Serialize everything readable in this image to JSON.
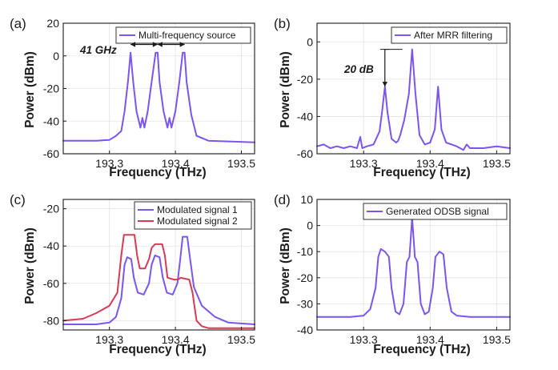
{
  "figure": {
    "panels": [
      {
        "label": "(a)",
        "ylabel": "Power (dBm)",
        "xlabel": "Frequency (THz)",
        "xlim": [
          193.23,
          193.52
        ],
        "ylim": [
          -60,
          20
        ],
        "xticks": [
          193.3,
          193.4,
          193.5
        ],
        "yticks": [
          -60,
          -40,
          -20,
          0,
          20
        ],
        "legend": [
          "Multi-frequency source"
        ],
        "annotation": "41 GHz"
      },
      {
        "label": "(b)",
        "ylabel": "Power (dBm)",
        "xlabel": "Frequency (THz)",
        "xlim": [
          193.23,
          193.52
        ],
        "ylim": [
          -60,
          10
        ],
        "xticks": [
          193.3,
          193.4,
          193.5
        ],
        "yticks": [
          -60,
          -40,
          -20,
          0
        ],
        "legend": [
          "After MRR filtering"
        ],
        "annotation": "20 dB"
      },
      {
        "label": "(c)",
        "ylabel": "Power (dBm)",
        "xlabel": "Frequency (THz)",
        "xlim": [
          193.23,
          193.52
        ],
        "ylim": [
          -85,
          -15
        ],
        "xticks": [
          193.3,
          193.4,
          193.5
        ],
        "yticks": [
          -80,
          -60,
          -40,
          -20
        ],
        "legend": [
          "Modulated signal 1",
          "Modulated signal 2"
        ]
      },
      {
        "label": "(d)",
        "ylabel": "Power (dBm)",
        "xlabel": "Frequency (THz)",
        "xlim": [
          193.23,
          193.52
        ],
        "ylim": [
          -40,
          10
        ],
        "xticks": [
          193.3,
          193.4,
          193.5
        ],
        "yticks": [
          -40,
          -30,
          -20,
          -10,
          0,
          10
        ],
        "legend": [
          "Generated ODSB signal"
        ]
      }
    ]
  },
  "colors": {
    "purple": "#7a55ee",
    "red": "#d63a55",
    "axis": "#1a1a1a"
  },
  "chart_data": [
    {
      "type": "line",
      "title": "(a)",
      "xlabel": "Frequency (THz)",
      "ylabel": "Power (dBm)",
      "xlim": [
        193.23,
        193.52
      ],
      "ylim": [
        -60,
        20
      ],
      "series": [
        {
          "name": "Multi-frequency source",
          "color": "#7a55ee",
          "x": [
            193.23,
            193.28,
            193.3,
            193.31,
            193.318,
            193.323,
            193.328,
            193.332,
            193.336,
            193.341,
            193.347,
            193.35,
            193.353,
            193.358,
            193.364,
            193.37,
            193.373,
            193.376,
            193.382,
            193.388,
            193.391,
            193.394,
            193.4,
            193.406,
            193.411,
            193.414,
            193.417,
            193.424,
            193.432,
            193.45,
            193.52
          ],
          "y": [
            -52,
            -52,
            -51.5,
            -49,
            -46,
            -34,
            -16,
            2,
            -16,
            -34,
            -44,
            -38,
            -44,
            -34,
            -16,
            2,
            2,
            -16,
            -34,
            -44,
            -38,
            -44,
            -34,
            -16,
            2,
            2,
            -16,
            -36,
            -49,
            -52,
            -53
          ]
        }
      ],
      "annotations": [
        {
          "text": "41 GHz",
          "x": 193.28,
          "y": 7
        },
        {
          "type": "arrow",
          "from": [
            193.332,
            7
          ],
          "to": [
            193.373,
            7
          ]
        },
        {
          "type": "arrow",
          "from": [
            193.373,
            7
          ],
          "to": [
            193.414,
            7
          ]
        }
      ]
    },
    {
      "type": "line",
      "title": "(b)",
      "xlabel": "Frequency (THz)",
      "ylabel": "Power (dBm)",
      "xlim": [
        193.23,
        193.52
      ],
      "ylim": [
        -60,
        10
      ],
      "series": [
        {
          "name": "After MRR filtering",
          "color": "#7a55ee",
          "x": [
            193.23,
            193.24,
            193.25,
            193.26,
            193.27,
            193.28,
            193.29,
            193.295,
            193.298,
            193.305,
            193.315,
            193.324,
            193.328,
            193.332,
            193.336,
            193.342,
            193.349,
            193.352,
            193.355,
            193.361,
            193.368,
            193.373,
            193.378,
            193.384,
            193.392,
            193.4,
            193.407,
            193.412,
            193.417,
            193.424,
            193.44,
            193.45,
            193.455,
            193.46,
            193.48,
            193.5,
            193.52
          ],
          "y": [
            -56,
            -55,
            -57,
            -56,
            -57,
            -56,
            -57,
            -51,
            -57,
            -56,
            -55,
            -48,
            -37,
            -24,
            -38,
            -52,
            -54,
            -53,
            -50,
            -42,
            -28,
            -4,
            -28,
            -50,
            -55,
            -54,
            -47,
            -24,
            -47,
            -54,
            -56,
            -58,
            -55,
            -57,
            -57,
            -56,
            -57
          ]
        }
      ],
      "annotations": [
        {
          "text": "20 dB",
          "x": 193.275,
          "y": -13
        },
        {
          "type": "arrow",
          "from": [
            193.332,
            -4
          ],
          "to": [
            193.332,
            -24
          ]
        }
      ]
    },
    {
      "type": "line",
      "title": "(c)",
      "xlabel": "Frequency (THz)",
      "ylabel": "Power (dBm)",
      "xlim": [
        193.23,
        193.52
      ],
      "ylim": [
        -85,
        -15
      ],
      "series": [
        {
          "name": "Modulated signal 1",
          "color": "#7a55ee",
          "x": [
            193.23,
            193.28,
            193.3,
            193.31,
            193.318,
            193.323,
            193.327,
            193.333,
            193.337,
            193.343,
            193.352,
            193.36,
            193.364,
            193.369,
            193.376,
            193.381,
            193.387,
            193.396,
            193.403,
            193.407,
            193.411,
            193.418,
            193.422,
            193.428,
            193.44,
            193.46,
            193.48,
            193.52
          ],
          "y": [
            -82,
            -82,
            -81,
            -78,
            -68,
            -50,
            -46,
            -47,
            -57,
            -65,
            -66,
            -60,
            -50,
            -45,
            -46,
            -57,
            -65,
            -66,
            -60,
            -48,
            -35,
            -35,
            -46,
            -62,
            -72,
            -78,
            -81,
            -82
          ]
        },
        {
          "name": "Modulated signal 2",
          "color": "#d63a55",
          "x": [
            193.23,
            193.26,
            193.28,
            193.3,
            193.312,
            193.318,
            193.322,
            193.338,
            193.342,
            193.346,
            193.354,
            193.36,
            193.364,
            193.369,
            193.38,
            193.384,
            193.388,
            193.398,
            193.404,
            193.408,
            193.421,
            193.426,
            193.432,
            193.44,
            193.45,
            193.48,
            193.52
          ],
          "y": [
            -80,
            -79,
            -76,
            -72,
            -65,
            -45,
            -34,
            -34,
            -45,
            -52,
            -52,
            -47,
            -41,
            -39,
            -39,
            -45,
            -57,
            -58,
            -58,
            -57,
            -58,
            -65,
            -80,
            -83,
            -84,
            -84,
            -84
          ]
        }
      ]
    },
    {
      "type": "line",
      "title": "(d)",
      "xlabel": "Frequency (THz)",
      "ylabel": "Power (dBm)",
      "xlim": [
        193.23,
        193.52
      ],
      "ylim": [
        -40,
        10
      ],
      "series": [
        {
          "name": "Generated ODSB signal",
          "color": "#7a55ee",
          "x": [
            193.23,
            193.28,
            193.3,
            193.31,
            193.318,
            193.322,
            193.326,
            193.332,
            193.338,
            193.342,
            193.348,
            193.354,
            193.36,
            193.365,
            193.369,
            193.373,
            193.377,
            193.381,
            193.386,
            193.392,
            193.398,
            193.404,
            193.408,
            193.414,
            193.42,
            193.425,
            193.432,
            193.44,
            193.46,
            193.52
          ],
          "y": [
            -35,
            -35,
            -34.5,
            -32,
            -24,
            -12,
            -9,
            -10,
            -12,
            -24,
            -33,
            -34,
            -30,
            -14,
            -12,
            3,
            -12,
            -14,
            -30,
            -34,
            -33,
            -24,
            -12,
            -10,
            -11,
            -24,
            -33,
            -34.5,
            -35,
            -35
          ]
        }
      ]
    }
  ]
}
